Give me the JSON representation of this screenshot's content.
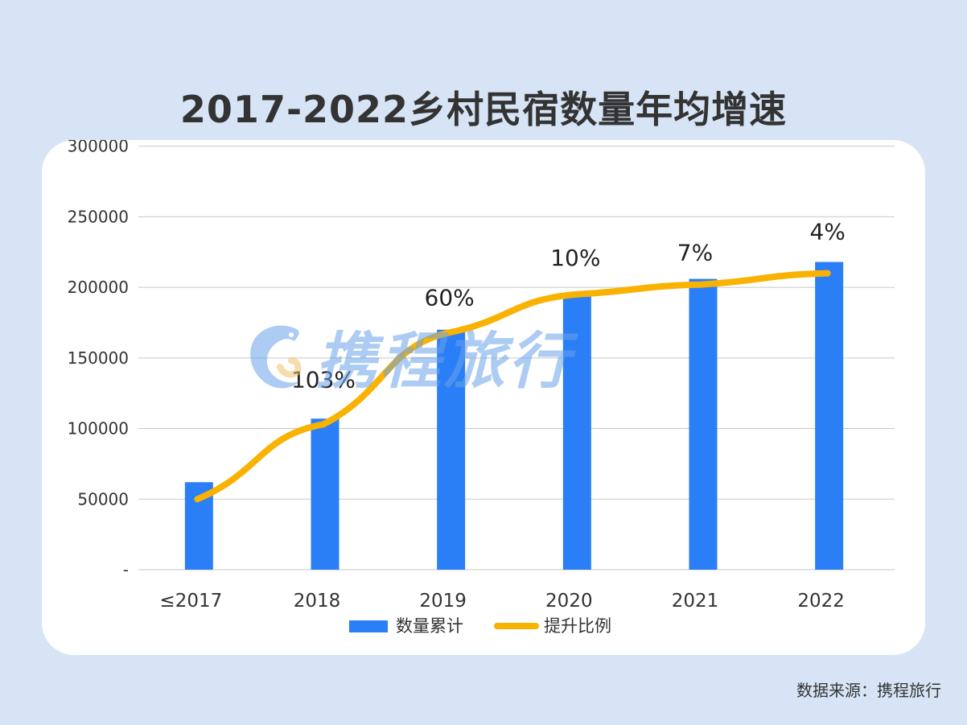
{
  "title": "2017-2022乡村民宿数量年均增速",
  "source": "数据来源：携程旅行",
  "watermark_text": "携程旅行",
  "chart_data": {
    "type": "bar",
    "categories": [
      "≤2017",
      "2018",
      "2019",
      "2020",
      "2021",
      "2022"
    ],
    "y_ticks": [
      "-",
      "50000",
      "100000",
      "150000",
      "200000",
      "250000",
      "300000"
    ],
    "ylim": [
      0,
      280000
    ],
    "series": [
      {
        "name": "数量累计",
        "type": "bar",
        "color": "#2b7ff6",
        "values": [
          62000,
          107000,
          170000,
          196000,
          206000,
          218000
        ]
      },
      {
        "name": "提升比例",
        "type": "line",
        "color": "#f9b200",
        "values": [
          50000,
          103000,
          168000,
          195000,
          202000,
          210000
        ],
        "labels": [
          "",
          "103%",
          "60%",
          "10%",
          "7%",
          "4%"
        ]
      }
    ],
    "legend_position": "bottom",
    "grid": true
  }
}
